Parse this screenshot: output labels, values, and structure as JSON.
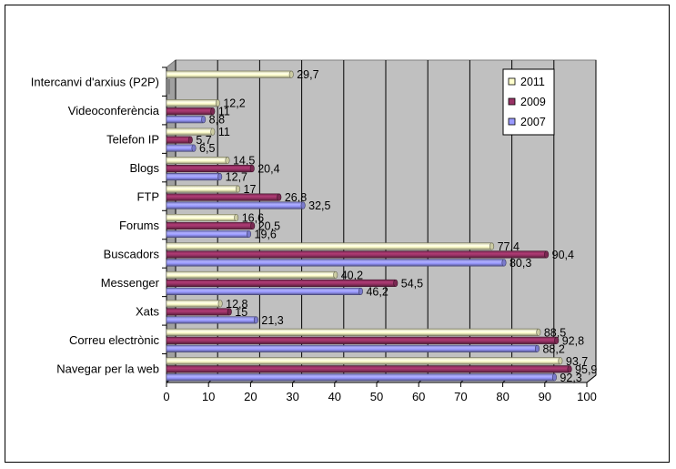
{
  "chart_data": {
    "type": "bar",
    "orientation": "horizontal",
    "style": "3d-cylinder",
    "categories": [
      "Intercanvi d'arxius (P2P)",
      "Videoconferència",
      "Telefon IP",
      "Blogs",
      "FTP",
      "Forums",
      "Buscadors",
      "Messenger",
      "Xats",
      "Correu electrònic",
      "Navegar per la web"
    ],
    "series": [
      {
        "name": "2011",
        "color": "#FFFFCC",
        "values": [
          29.7,
          12.2,
          11,
          14.5,
          17,
          16.6,
          77.4,
          40.2,
          12.8,
          88.5,
          93.7
        ]
      },
      {
        "name": "2009",
        "color": "#993366",
        "values": [
          null,
          11,
          5.7,
          20.4,
          26.8,
          20.5,
          90.4,
          54.5,
          15,
          92.8,
          95.9
        ]
      },
      {
        "name": "2007",
        "color": "#9999FF",
        "values": [
          null,
          8.8,
          6.5,
          12.7,
          32.5,
          19.6,
          80.3,
          46.2,
          21.3,
          88.2,
          92.3
        ]
      }
    ],
    "value_labels": [
      [
        "29,7",
        "12,2",
        "11",
        "14,5",
        "17",
        "16,6",
        "77,4",
        "40,2",
        "12,8",
        "88,5",
        "93,7"
      ],
      [
        "",
        "11",
        "5,7",
        "20,4",
        "26,8",
        "20,5",
        "90,4",
        "54,5",
        "15",
        "92,8",
        "95,9"
      ],
      [
        "",
        "8,8",
        "6,5",
        "12,7",
        "32,5",
        "19,6",
        "80,3",
        "46,2",
        "21,3",
        "88,2",
        "92,3"
      ]
    ],
    "x_ticks": [
      "0",
      "10",
      "20",
      "30",
      "40",
      "50",
      "60",
      "70",
      "80",
      "90",
      "100"
    ],
    "xlim": [
      0,
      100
    ],
    "grid": true,
    "plot_background": "#C0C0C0",
    "legend_position": "top-right"
  }
}
